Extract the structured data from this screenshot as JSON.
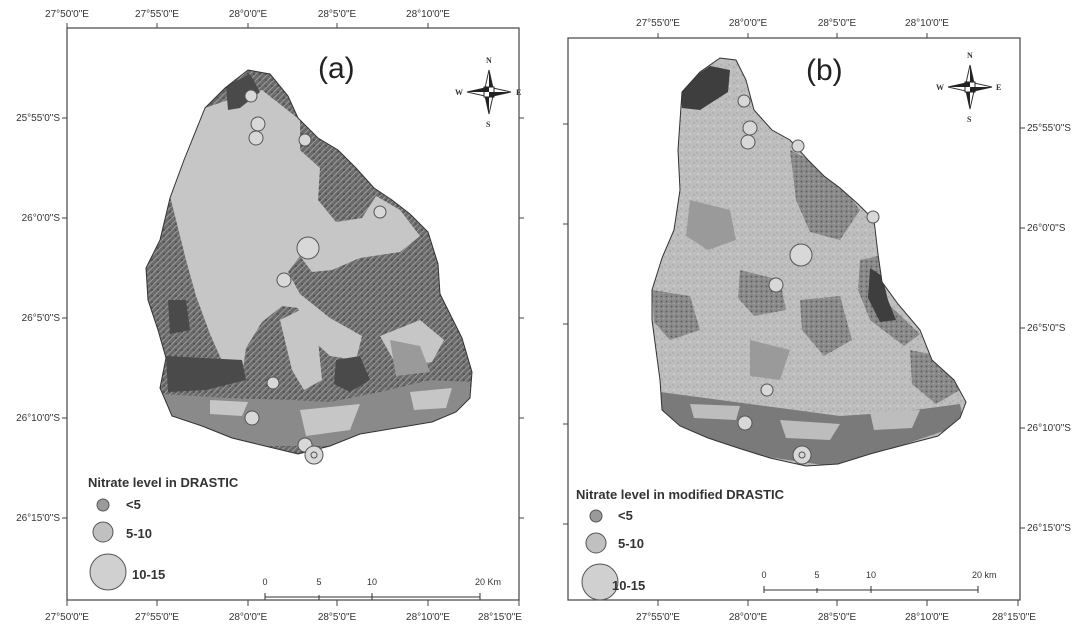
{
  "panel_a": {
    "label": "(a)",
    "top_ticks": [
      "27°50'0\"E",
      "27°55'0\"E",
      "28°0'0\"E",
      "28°5'0\"E",
      "28°10'0\"E"
    ],
    "bottom_ticks": [
      "27°50'0\"E",
      "27°55'0\"E",
      "28°0'0\"E",
      "28°5'0\"E",
      "28°10'0\"E",
      "28°15'0\"E"
    ],
    "left_ticks": [
      "25°55'0\"S",
      "26°0'0\"S",
      "26°5'0\"S",
      "26°10'0\"S",
      "26°15'0\"S"
    ],
    "legend_title": "Nitrate level in DRASTIC",
    "legend_items": [
      "<5",
      "5-10",
      "10-15"
    ],
    "scale_labels": [
      "0",
      "5",
      "10",
      "20 Km"
    ]
  },
  "panel_b": {
    "label": "(b)",
    "top_ticks": [
      "27°55'0\"E",
      "28°0'0\"E",
      "28°5'0\"E",
      "28°10'0\"E"
    ],
    "bottom_ticks": [
      "27°55'0\"E",
      "28°0'0\"E",
      "28°5'0\"E",
      "28°10'0\"E",
      "28°15'0\"E"
    ],
    "right_ticks": [
      "25°55'0\"S",
      "26°0'0\"S",
      "26°5'0\"S",
      "26°10'0\"S",
      "26°15'0\"S"
    ],
    "legend_title": "Nitrate level in modified DRASTIC",
    "legend_items": [
      "<5",
      "5-10",
      "10-15"
    ],
    "scale_labels": [
      "0",
      "5",
      "10",
      "20 km"
    ]
  },
  "compass": {
    "n": "N",
    "s": "S",
    "e": "E",
    "w": "W"
  },
  "colors": {
    "light": "#c6c6c6",
    "medium": "#8a8a8a",
    "dark": "#4a4a4a",
    "frame": "#444444"
  }
}
